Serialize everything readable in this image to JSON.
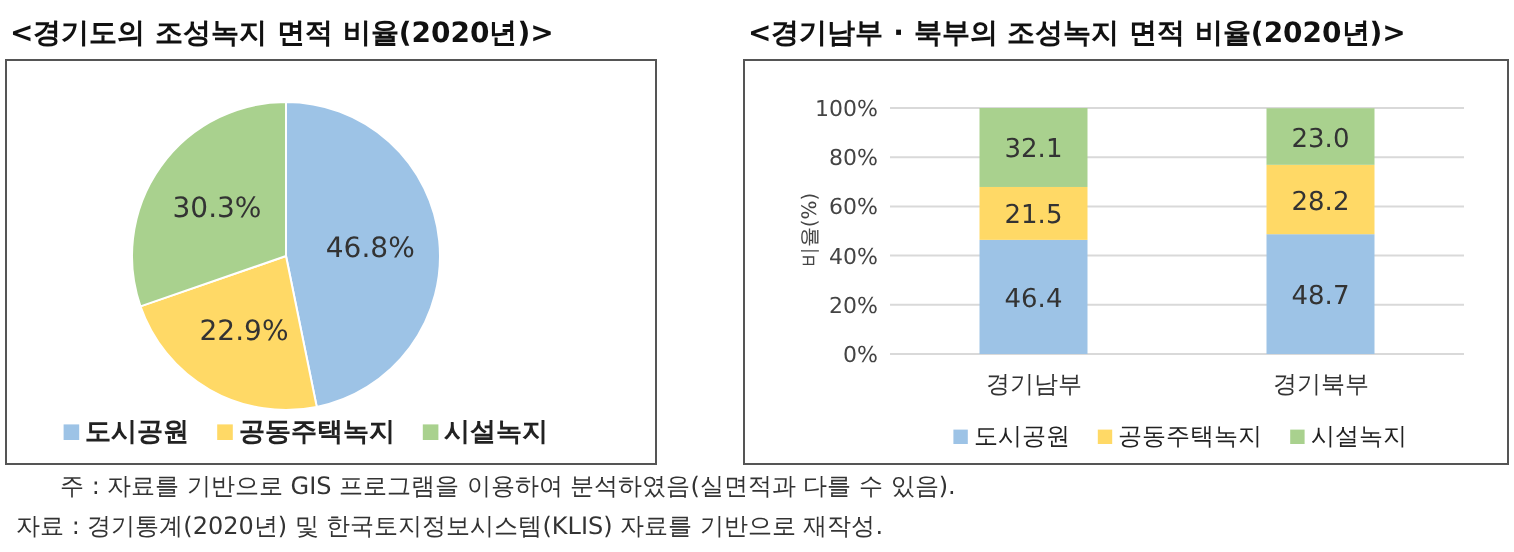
{
  "chart_data": [
    {
      "type": "pie",
      "title": "<경기도의 조성녹지 면적 비율(2020년)>",
      "categories": [
        "도시공원",
        "공동주택녹지",
        "시설녹지"
      ],
      "values": [
        46.8,
        22.9,
        30.3
      ],
      "colors": [
        "#9dc3e6",
        "#ffd966",
        "#a9d18e"
      ],
      "value_labels": [
        "46.8%",
        "22.9%",
        "30.3%"
      ],
      "legend": "bottom",
      "annotations": [
        "주 : 자료를 기반으로 GIS 프로그램을 이용하여 분석하였음(실면적과 다를 수 있음).",
        "자료 : 경기통계(2020년) 및 한국토지정보시스템(KLIS) 자료를 기반으로 재작성."
      ]
    },
    {
      "type": "bar",
      "title": "<경기남부 · 북부의 조성녹지 면적 비율(2020년)>",
      "categories": [
        "경기남부",
        "경기북부"
      ],
      "series": [
        {
          "name": "도시공원",
          "color": "#9dc3e6",
          "values": [
            46.4,
            48.7
          ]
        },
        {
          "name": "공동주택녹지",
          "color": "#ffd966",
          "values": [
            21.5,
            28.2
          ]
        },
        {
          "name": "시설녹지",
          "color": "#a9d18e",
          "values": [
            32.1,
            23.0
          ],
          "value_labels": [
            "32.1",
            "23.0"
          ]
        }
      ],
      "stacked": true,
      "ylabel": "비율(%)",
      "ylim": [
        0,
        100
      ],
      "yticks": [
        {
          "value": 0,
          "label": "0%"
        },
        {
          "value": 20,
          "label": "20%"
        },
        {
          "value": 40,
          "label": "40%"
        },
        {
          "value": 60,
          "label": "60%"
        },
        {
          "value": 80,
          "label": "80%"
        },
        {
          "value": 100,
          "label": "100%"
        }
      ],
      "grid": "y",
      "data_labels": true,
      "legend": "bottom"
    }
  ]
}
